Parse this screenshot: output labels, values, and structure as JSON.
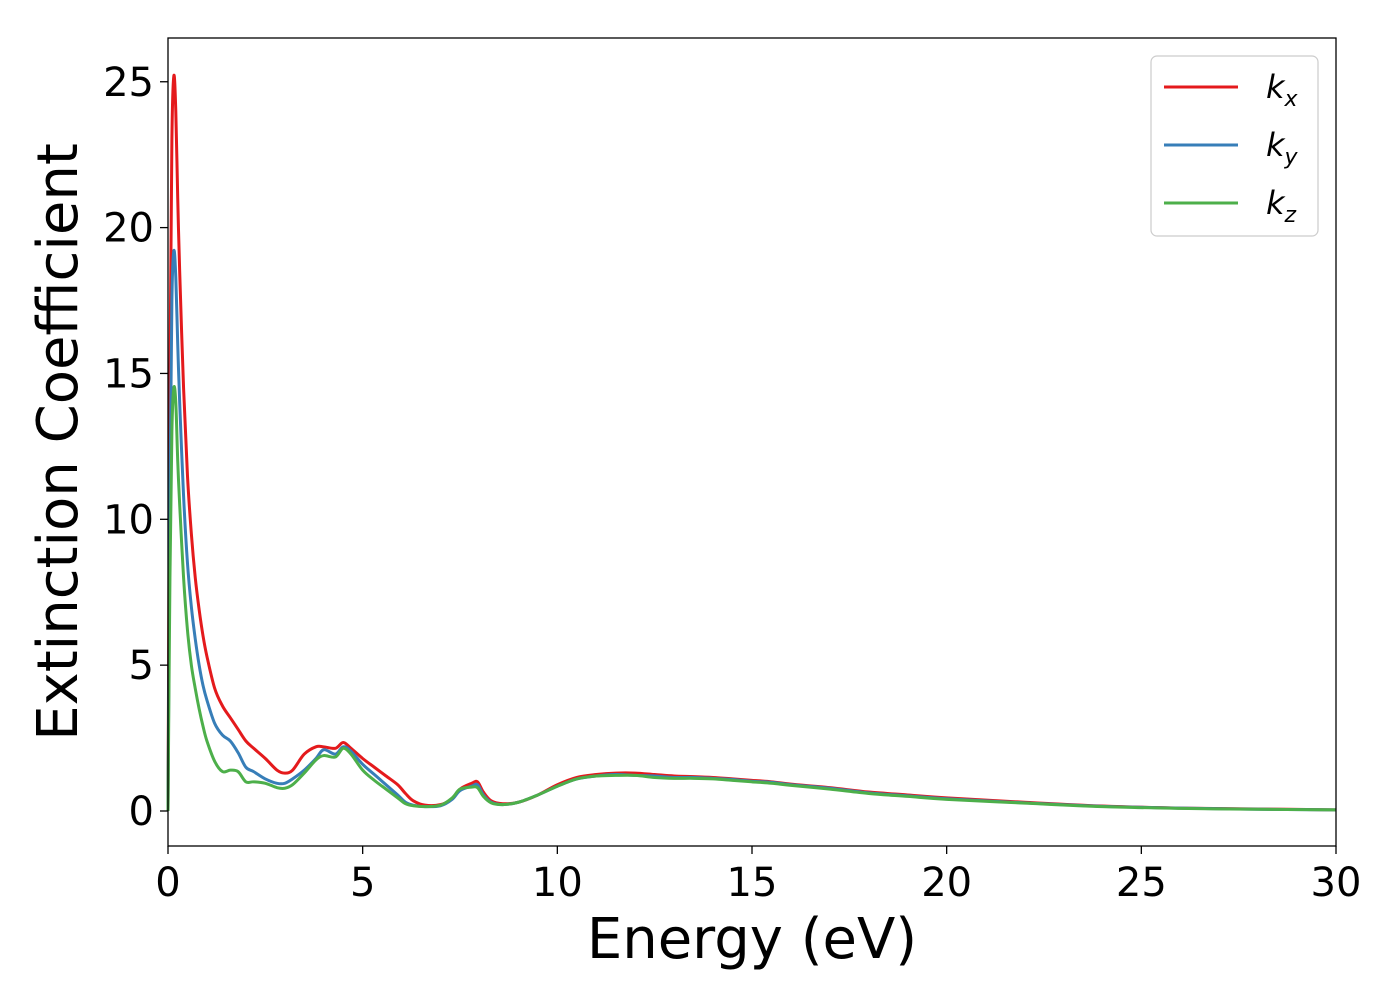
{
  "chart_data": {
    "type": "line",
    "xlabel": "Energy (eV)",
    "ylabel": "Extinction Coefficient",
    "xlim": [
      0,
      30
    ],
    "ylim": [
      -1.2,
      26.5
    ],
    "xticks": [
      "0",
      "5",
      "10",
      "15",
      "20",
      "25",
      "30"
    ],
    "yticks": [
      "0",
      "5",
      "10",
      "15",
      "20",
      "25"
    ],
    "grid": false,
    "legend_position": "top-right",
    "series": [
      {
        "name": "k",
        "subscript": "x",
        "color": "#e41a1c",
        "x": [
          0,
          0.05,
          0.1,
          0.15,
          0.2,
          0.25,
          0.3,
          0.4,
          0.5,
          0.6,
          0.7,
          0.8,
          0.9,
          1.0,
          1.2,
          1.4,
          1.6,
          1.8,
          2.0,
          2.2,
          2.5,
          2.8,
          3.0,
          3.2,
          3.5,
          3.8,
          4.0,
          4.3,
          4.5,
          4.7,
          5.0,
          5.3,
          5.6,
          5.9,
          6.1,
          6.3,
          6.6,
          7.0,
          7.3,
          7.5,
          7.8,
          7.95,
          8.1,
          8.3,
          8.6,
          9.0,
          9.5,
          10.0,
          10.5,
          11.0,
          11.5,
          12.0,
          12.5,
          13.0,
          13.5,
          14.0,
          14.5,
          15.0,
          15.5,
          16.0,
          17.0,
          18.0,
          19.0,
          20.0,
          22.0,
          24.0,
          26.0,
          28.0,
          30.0
        ],
        "values": [
          0,
          15.0,
          23.0,
          25.2,
          24.0,
          21.0,
          18.5,
          14.5,
          11.5,
          9.5,
          8.0,
          6.9,
          6.0,
          5.3,
          4.2,
          3.6,
          3.2,
          2.8,
          2.4,
          2.15,
          1.8,
          1.4,
          1.3,
          1.4,
          1.95,
          2.2,
          2.2,
          2.15,
          2.35,
          2.15,
          1.8,
          1.5,
          1.2,
          0.9,
          0.6,
          0.35,
          0.2,
          0.22,
          0.42,
          0.75,
          0.95,
          1.0,
          0.65,
          0.35,
          0.25,
          0.3,
          0.55,
          0.9,
          1.15,
          1.25,
          1.3,
          1.3,
          1.25,
          1.2,
          1.18,
          1.15,
          1.1,
          1.05,
          1.0,
          0.92,
          0.8,
          0.65,
          0.55,
          0.45,
          0.3,
          0.17,
          0.1,
          0.07,
          0.04
        ]
      },
      {
        "name": "k",
        "subscript": "y",
        "color": "#377eb8",
        "x": [
          0,
          0.05,
          0.1,
          0.15,
          0.2,
          0.25,
          0.3,
          0.4,
          0.5,
          0.6,
          0.7,
          0.8,
          0.9,
          1.0,
          1.2,
          1.4,
          1.6,
          1.8,
          2.0,
          2.2,
          2.5,
          2.8,
          3.0,
          3.2,
          3.5,
          3.8,
          4.0,
          4.3,
          4.5,
          4.7,
          5.0,
          5.3,
          5.6,
          5.9,
          6.1,
          6.3,
          6.6,
          7.0,
          7.3,
          7.5,
          7.8,
          7.95,
          8.1,
          8.3,
          8.6,
          9.0,
          9.5,
          10.0,
          10.5,
          11.0,
          11.5,
          12.0,
          12.5,
          13.0,
          13.5,
          14.0,
          14.5,
          15.0,
          15.5,
          16.0,
          17.0,
          18.0,
          19.0,
          20.0,
          22.0,
          24.0,
          26.0,
          28.0,
          30.0
        ],
        "values": [
          0,
          11.0,
          17.5,
          19.2,
          18.3,
          16.0,
          14.0,
          10.8,
          8.5,
          7.0,
          5.9,
          5.0,
          4.3,
          3.8,
          3.0,
          2.6,
          2.4,
          2.0,
          1.5,
          1.35,
          1.1,
          0.95,
          0.95,
          1.1,
          1.4,
          1.8,
          2.1,
          1.95,
          2.2,
          2.05,
          1.6,
          1.25,
          0.9,
          0.55,
          0.3,
          0.2,
          0.15,
          0.18,
          0.4,
          0.7,
          0.85,
          0.9,
          0.55,
          0.3,
          0.22,
          0.3,
          0.55,
          0.85,
          1.1,
          1.2,
          1.25,
          1.22,
          1.2,
          1.15,
          1.15,
          1.12,
          1.08,
          1.02,
          0.98,
          0.9,
          0.78,
          0.62,
          0.52,
          0.42,
          0.28,
          0.16,
          0.1,
          0.06,
          0.04
        ]
      },
      {
        "name": "k",
        "subscript": "z",
        "color": "#4daf4a",
        "x": [
          0,
          0.05,
          0.1,
          0.15,
          0.2,
          0.25,
          0.3,
          0.4,
          0.5,
          0.6,
          0.7,
          0.8,
          0.9,
          1.0,
          1.2,
          1.4,
          1.6,
          1.8,
          2.0,
          2.2,
          2.5,
          2.8,
          3.0,
          3.2,
          3.5,
          3.8,
          4.0,
          4.3,
          4.5,
          4.7,
          5.0,
          5.3,
          5.6,
          5.9,
          6.1,
          6.3,
          6.6,
          7.0,
          7.3,
          7.5,
          7.8,
          7.95,
          8.1,
          8.3,
          8.6,
          9.0,
          9.5,
          10.0,
          10.5,
          11.0,
          11.5,
          12.0,
          12.5,
          13.0,
          13.5,
          14.0,
          14.5,
          15.0,
          15.5,
          16.0,
          17.0,
          18.0,
          19.0,
          20.0,
          22.0,
          24.0,
          26.0,
          28.0,
          30.0
        ],
        "values": [
          0,
          8.0,
          13.0,
          14.5,
          14.0,
          12.0,
          10.5,
          8.0,
          6.2,
          5.0,
          4.2,
          3.5,
          2.9,
          2.4,
          1.7,
          1.35,
          1.4,
          1.35,
          1.0,
          1.0,
          0.95,
          0.8,
          0.78,
          0.9,
          1.3,
          1.75,
          1.9,
          1.85,
          2.15,
          1.95,
          1.4,
          1.05,
          0.75,
          0.45,
          0.25,
          0.18,
          0.15,
          0.2,
          0.45,
          0.75,
          0.82,
          0.8,
          0.5,
          0.28,
          0.22,
          0.3,
          0.55,
          0.85,
          1.1,
          1.2,
          1.22,
          1.22,
          1.15,
          1.12,
          1.12,
          1.1,
          1.05,
          1.0,
          0.95,
          0.88,
          0.75,
          0.6,
          0.5,
          0.4,
          0.27,
          0.15,
          0.09,
          0.06,
          0.04
        ]
      }
    ]
  }
}
